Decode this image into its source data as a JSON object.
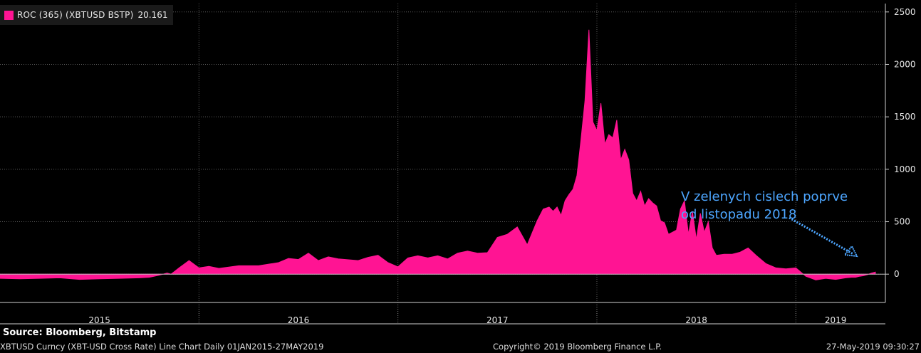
{
  "legend": {
    "label": "ROC (365) (XBTUSD BSTP)",
    "value": "20.161",
    "color": "#ff1493"
  },
  "annotation": {
    "line1": "V zelenych cislech poprve",
    "line2": "od listopadu 2018",
    "color": "#4da6ff"
  },
  "footer": {
    "source": "Source: Bloomberg, Bitstamp",
    "description": "XBTUSD Curncy (XBT-USD Cross Rate) Line Chart  Daily 01JAN2015-27MAY2019",
    "copyright": "Copyright© 2019 Bloomberg Finance L.P.",
    "timestamp": "27-May-2019 09:30:27"
  },
  "chart_data": {
    "type": "area",
    "ylim": [
      -270,
      2580
    ],
    "yticks": [
      0,
      500,
      1000,
      1500,
      2000,
      2500
    ],
    "xlim": [
      2015.0,
      2019.45
    ],
    "year_labels": [
      {
        "label": "2015",
        "x": 2015.5
      },
      {
        "label": "2016",
        "x": 2016.5
      },
      {
        "label": "2017",
        "x": 2017.5
      },
      {
        "label": "2018",
        "x": 2018.5
      },
      {
        "label": "2019",
        "x": 2019.2
      }
    ],
    "year_boundaries": [
      2016.0,
      2017.0,
      2018.0,
      2019.0
    ],
    "grid": true,
    "series": [
      {
        "color": "#ff1493",
        "x": [
          2015.0,
          2015.1,
          2015.2,
          2015.3,
          2015.4,
          2015.5,
          2015.6,
          2015.7,
          2015.75,
          2015.8,
          2015.84,
          2015.86,
          2015.9,
          2015.95,
          2016.0,
          2016.05,
          2016.1,
          2016.2,
          2016.3,
          2016.4,
          2016.45,
          2016.5,
          2016.55,
          2016.6,
          2016.65,
          2016.7,
          2016.8,
          2016.85,
          2016.9,
          2016.95,
          2017.0,
          2017.05,
          2017.1,
          2017.15,
          2017.2,
          2017.25,
          2017.3,
          2017.35,
          2017.4,
          2017.45,
          2017.5,
          2017.55,
          2017.6,
          2017.65,
          2017.7,
          2017.73,
          2017.76,
          2017.78,
          2017.8,
          2017.82,
          2017.84,
          2017.86,
          2017.88,
          2017.9,
          2017.92,
          2017.94,
          2017.96,
          2017.98,
          2018.0,
          2018.02,
          2018.04,
          2018.06,
          2018.08,
          2018.1,
          2018.12,
          2018.14,
          2018.16,
          2018.18,
          2018.2,
          2018.22,
          2018.24,
          2018.26,
          2018.28,
          2018.3,
          2018.32,
          2018.34,
          2018.36,
          2018.38,
          2018.4,
          2018.42,
          2018.44,
          2018.46,
          2018.48,
          2018.5,
          2018.52,
          2018.54,
          2018.56,
          2018.58,
          2018.6,
          2018.64,
          2018.68,
          2018.72,
          2018.76,
          2018.8,
          2018.85,
          2018.9,
          2018.95,
          2019.0,
          2019.05,
          2019.1,
          2019.15,
          2019.2,
          2019.25,
          2019.28,
          2019.3,
          2019.32,
          2019.34,
          2019.36,
          2019.38,
          2019.4
        ],
        "values": [
          -40,
          -45,
          -40,
          -35,
          -50,
          -45,
          -40,
          -35,
          -30,
          -10,
          10,
          0,
          60,
          130,
          60,
          75,
          55,
          80,
          80,
          110,
          150,
          140,
          200,
          130,
          165,
          145,
          130,
          160,
          180,
          110,
          70,
          155,
          175,
          155,
          175,
          145,
          200,
          220,
          200,
          205,
          350,
          380,
          450,
          280,
          510,
          620,
          640,
          600,
          640,
          560,
          700,
          760,
          810,
          940,
          1280,
          1650,
          2330,
          1450,
          1370,
          1630,
          1240,
          1330,
          1300,
          1470,
          1090,
          1190,
          1090,
          770,
          700,
          790,
          650,
          720,
          680,
          650,
          510,
          490,
          380,
          400,
          420,
          620,
          700,
          380,
          600,
          330,
          580,
          400,
          500,
          250,
          180,
          190,
          190,
          210,
          250,
          180,
          100,
          60,
          50,
          60,
          -20,
          -55,
          -40,
          -50,
          -35,
          -30,
          -30,
          -20,
          -15,
          -5,
          10,
          20
        ]
      }
    ]
  }
}
